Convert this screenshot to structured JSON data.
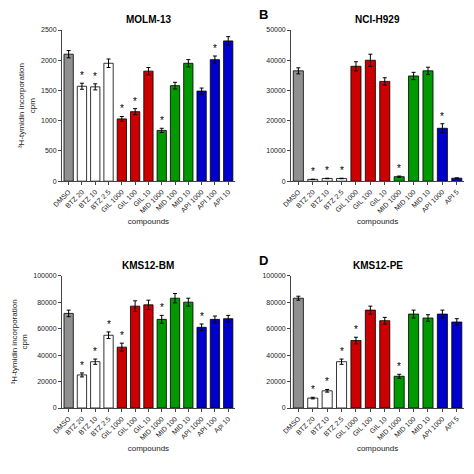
{
  "chart_data": [
    {
      "type": "bar",
      "title": "MOLM-13",
      "categories": [
        "DMSO",
        "BTZ 20",
        "BTZ 10",
        "BTZ 2.5",
        "GIL 1000",
        "GIL 100",
        "GIL 10",
        "MID 1000",
        "MID 100",
        "MID 10",
        "API 1000",
        "API 100",
        "API 10"
      ],
      "values": [
        2100,
        1570,
        1560,
        1950,
        1030,
        1150,
        1820,
        840,
        1580,
        1950,
        1490,
        2010,
        2320
      ],
      "errors": [
        60,
        50,
        50,
        70,
        40,
        50,
        60,
        35,
        55,
        60,
        50,
        60,
        70
      ],
      "colors": [
        "#909090",
        "#ffffff",
        "#ffffff",
        "#ffffff",
        "#cc0000",
        "#cc0000",
        "#cc0000",
        "#009900",
        "#009900",
        "#009900",
        "#0000cc",
        "#0000cc",
        "#0000cc"
      ],
      "ylim": [
        0,
        2500
      ],
      "yticks": [
        0,
        500,
        1000,
        1500,
        2000,
        2500
      ],
      "xlabel": "compounds",
      "ylabel": "³H-tymidin incorporation\ncpm",
      "grid": false,
      "annotations": [
        {
          "x": "BTZ 20",
          "text": "*"
        },
        {
          "x": "BTZ 10",
          "text": "*"
        },
        {
          "x": "GIL 1000",
          "text": "*"
        },
        {
          "x": "GIL 100",
          "text": "*"
        },
        {
          "x": "MID 1000",
          "text": "*"
        },
        {
          "x": "API 100",
          "text": "*"
        }
      ]
    },
    {
      "type": "bar",
      "title": "NCI-H929",
      "categories": [
        "DMSO",
        "BTZ 20",
        "BTZ 10",
        "BTZ 2.5",
        "GIL 1000",
        "GIL 100",
        "GIL 10",
        "MID 1000",
        "MID 100",
        "MID 10",
        "API 1000",
        "API 5"
      ],
      "values": [
        36500,
        600,
        900,
        900,
        38000,
        40000,
        33000,
        1500,
        34800,
        36500,
        17500,
        1000
      ],
      "errors": [
        1000,
        50,
        80,
        80,
        1500,
        2000,
        1200,
        200,
        1200,
        1200,
        1500,
        100
      ],
      "colors": [
        "#909090",
        "#ffffff",
        "#ffffff",
        "#ffffff",
        "#cc0000",
        "#cc0000",
        "#cc0000",
        "#009900",
        "#009900",
        "#009900",
        "#0000cc",
        "#0000cc"
      ],
      "ylim": [
        0,
        50000
      ],
      "yticks": [
        0,
        10000,
        20000,
        30000,
        40000,
        50000
      ],
      "xlabel": "compounds",
      "grid": false,
      "annotations": [
        {
          "text": "B"
        },
        {
          "x": "BTZ 20",
          "text": "*"
        },
        {
          "x": "BTZ 10",
          "text": "*"
        },
        {
          "x": "BTZ 2.5",
          "text": "*"
        },
        {
          "x": "MID 1000",
          "text": "*"
        },
        {
          "x": "API 1000",
          "text": "*"
        }
      ]
    },
    {
      "type": "bar",
      "title": "KMS12-BM",
      "categories": [
        "DMSO",
        "BTZ 20",
        "BTZ 10",
        "BTZ 2.5",
        "GIL 1000",
        "GIL 100",
        "GIL 10",
        "MID 1000",
        "MID 100",
        "MID 10",
        "API 1000",
        "API 100",
        "Api 10"
      ],
      "values": [
        71500,
        25000,
        35000,
        55000,
        46000,
        77000,
        78000,
        67000,
        83000,
        80000,
        61000,
        67000,
        67500
      ],
      "errors": [
        2500,
        1500,
        2000,
        2500,
        3000,
        4000,
        3500,
        3000,
        3500,
        3000,
        2500,
        2500,
        2500
      ],
      "colors": [
        "#909090",
        "#ffffff",
        "#ffffff",
        "#ffffff",
        "#cc0000",
        "#cc0000",
        "#cc0000",
        "#009900",
        "#009900",
        "#009900",
        "#0000cc",
        "#0000cc",
        "#0000cc"
      ],
      "ylim": [
        0,
        100000
      ],
      "yticks": [
        0,
        20000,
        40000,
        60000,
        80000,
        100000
      ],
      "xlabel": "compounds",
      "ylabel": "³H-tymidin incorporation\ncpm",
      "grid": false,
      "annotations": [
        {
          "x": "BTZ 20",
          "text": "*"
        },
        {
          "x": "BTZ 10",
          "text": "*"
        },
        {
          "x": "BTZ 2.5",
          "text": "*"
        },
        {
          "x": "GIL 1000",
          "text": "*"
        },
        {
          "x": "MID 1000",
          "text": "*"
        },
        {
          "x": "API 1000",
          "text": "*"
        }
      ]
    },
    {
      "type": "bar",
      "title": "KMS12-PE",
      "categories": [
        "DMSO",
        "BTZ 20",
        "BTZ 10",
        "BTZ 2.5",
        "GIL 1000",
        "GIL 100",
        "GIL 10",
        "MID 1000",
        "MID 100",
        "MID 10",
        "API 1000",
        "API 5"
      ],
      "values": [
        83000,
        7500,
        13000,
        35000,
        51000,
        74000,
        66000,
        24000,
        71000,
        68000,
        71000,
        65000
      ],
      "errors": [
        1500,
        600,
        1000,
        2000,
        2500,
        3000,
        2500,
        1500,
        3000,
        2500,
        3000,
        2500
      ],
      "colors": [
        "#909090",
        "#ffffff",
        "#ffffff",
        "#ffffff",
        "#cc0000",
        "#cc0000",
        "#cc0000",
        "#009900",
        "#009900",
        "#009900",
        "#0000cc",
        "#0000cc"
      ],
      "ylim": [
        0,
        100000
      ],
      "yticks": [
        0,
        20000,
        40000,
        60000,
        80000,
        100000
      ],
      "xlabel": "compounds",
      "grid": false,
      "annotations": [
        {
          "text": "D"
        },
        {
          "x": "BTZ 20",
          "text": "*"
        },
        {
          "x": "BTZ 10",
          "text": "*"
        },
        {
          "x": "BTZ 2.5",
          "text": "*"
        },
        {
          "x": "GIL 1000",
          "text": "*"
        },
        {
          "x": "MID 1000",
          "text": "*"
        }
      ]
    }
  ]
}
